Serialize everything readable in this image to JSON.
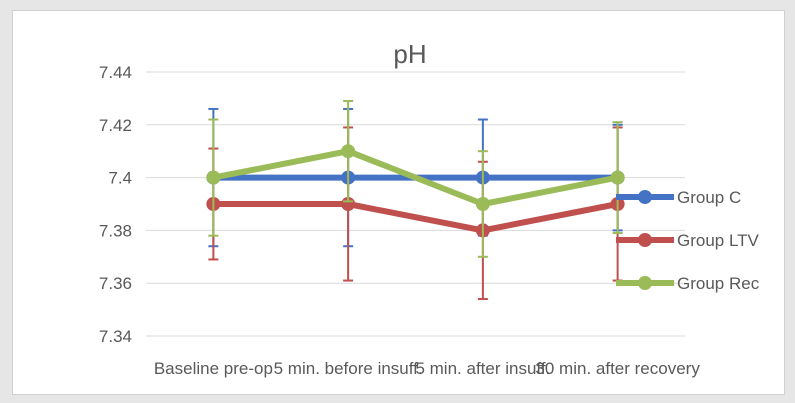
{
  "chart_data": {
    "type": "line",
    "title": "pH",
    "xlabel": "",
    "ylabel": "",
    "categories": [
      "Baseline pre-op",
      "5 min. before insuff.",
      "5 min. after insuff.",
      "30 min. after recovery"
    ],
    "ylim": [
      7.34,
      7.44
    ],
    "yticks": [
      7.34,
      7.36,
      7.38,
      7.4,
      7.42,
      7.44
    ],
    "ytick_labels": [
      "7.34",
      "7.36",
      "7.38",
      "7.4",
      "7.42",
      "7.44"
    ],
    "grid": true,
    "legend_position": "right",
    "series": [
      {
        "name": "Group C",
        "color": "#4472c4",
        "values": [
          7.4,
          7.4,
          7.4,
          7.4
        ],
        "error_upper": [
          7.426,
          7.426,
          7.422,
          7.42
        ],
        "error_lower": [
          7.374,
          7.374,
          7.378,
          7.38
        ]
      },
      {
        "name": "Group LTV",
        "color": "#c0504d",
        "values": [
          7.39,
          7.39,
          7.38,
          7.39
        ],
        "error_upper": [
          7.411,
          7.419,
          7.406,
          7.419
        ],
        "error_lower": [
          7.369,
          7.361,
          7.354,
          7.361
        ]
      },
      {
        "name": "Group Rec",
        "color": "#9bbb59",
        "values": [
          7.4,
          7.41,
          7.39,
          7.4
        ],
        "error_upper": [
          7.422,
          7.429,
          7.41,
          7.421
        ],
        "error_lower": [
          7.378,
          7.391,
          7.37,
          7.379
        ]
      }
    ]
  }
}
